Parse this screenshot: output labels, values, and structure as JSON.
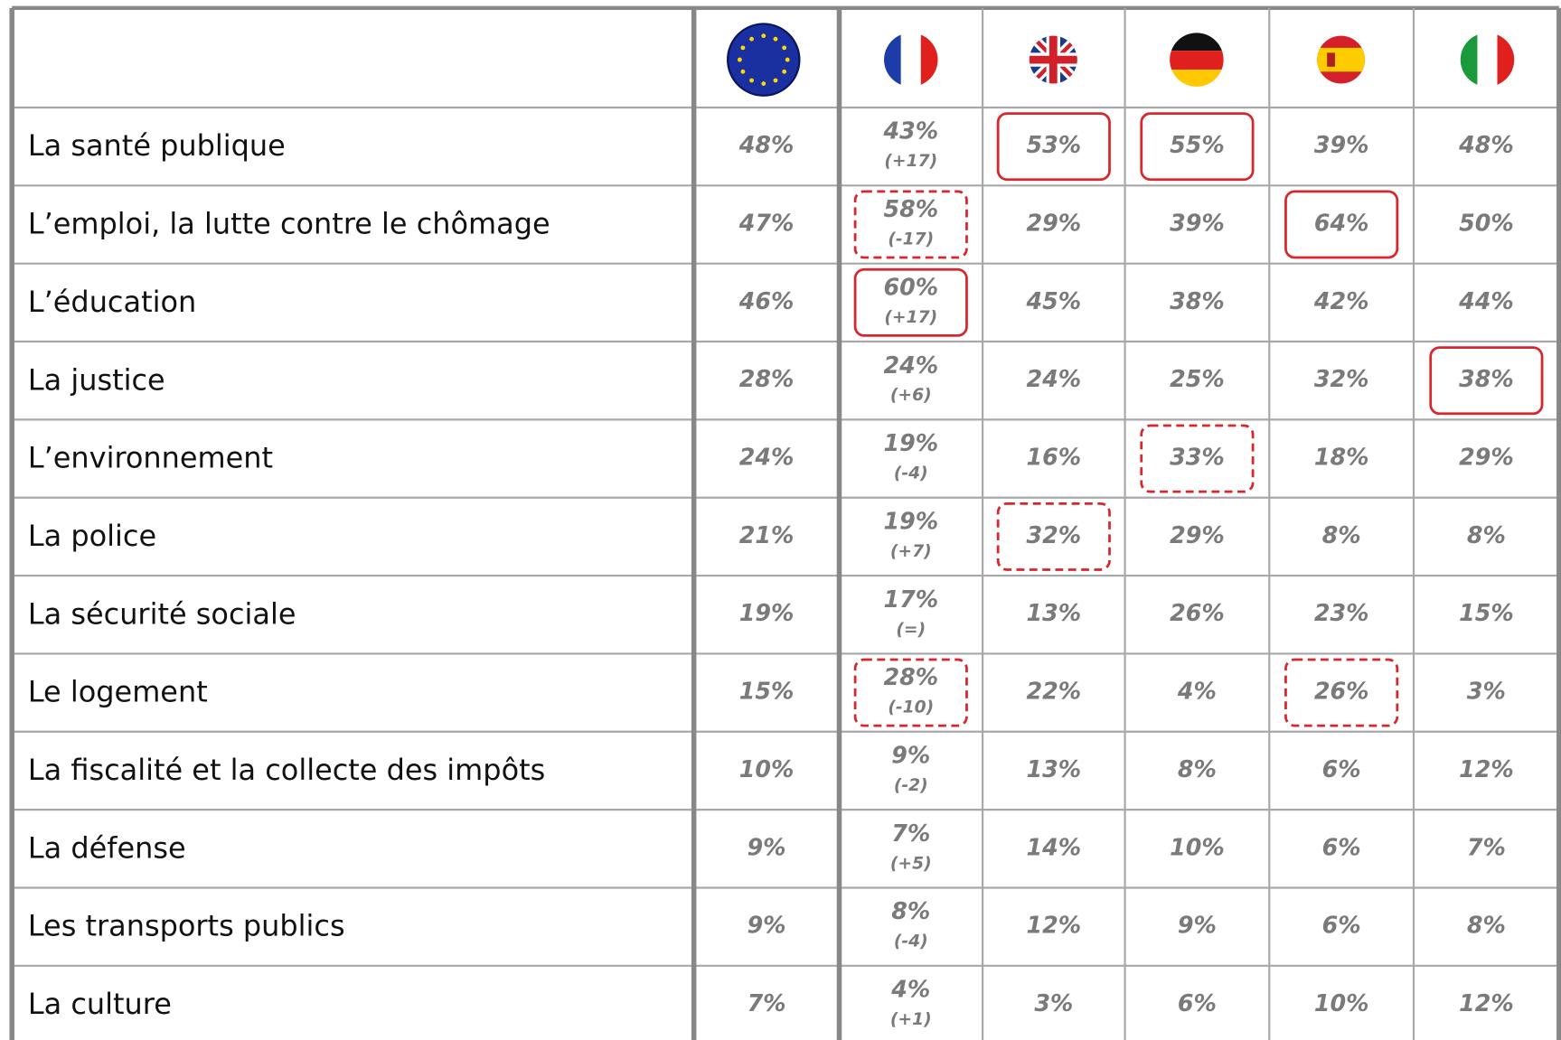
{
  "table": {
    "rows": [
      {
        "label": "La santé publique",
        "values": [
          "48%",
          "43%",
          "53%",
          "55%",
          "39%",
          "48%"
        ],
        "change": "(+17)"
      },
      {
        "label": "L’emploi, la lutte contre le chômage",
        "values": [
          "47%",
          "58%",
          "29%",
          "39%",
          "64%",
          "50%"
        ],
        "change": "(-17)"
      },
      {
        "label": "L’éducation",
        "values": [
          "46%",
          "60%",
          "45%",
          "38%",
          "42%",
          "44%"
        ],
        "change": "(+17)"
      },
      {
        "label": "La justice",
        "values": [
          "28%",
          "24%",
          "24%",
          "25%",
          "32%",
          "38%"
        ],
        "change": "(+6)"
      },
      {
        "label": "L’environnement",
        "values": [
          "24%",
          "19%",
          "16%",
          "33%",
          "18%",
          "29%"
        ],
        "change": "(-4)"
      },
      {
        "label": "La police",
        "values": [
          "21%",
          "19%",
          "32%",
          "29%",
          "8%",
          "8%"
        ],
        "change": "(+7)"
      },
      {
        "label": "La sécurité sociale",
        "values": [
          "19%",
          "17%",
          "13%",
          "26%",
          "23%",
          "15%"
        ],
        "change": "(=)"
      },
      {
        "label": "Le logement",
        "values": [
          "15%",
          "28%",
          "22%",
          "4%",
          "26%",
          "3%"
        ],
        "change": "(-10)"
      },
      {
        "label": "La fiscalité et la collecte des impôts",
        "values": [
          "10%",
          "9%",
          "13%",
          "8%",
          "6%",
          "12%"
        ],
        "change": "(-2)"
      },
      {
        "label": "La défense",
        "values": [
          "9%",
          "7%",
          "14%",
          "10%",
          "6%",
          "7%"
        ],
        "change": "(+5)"
      },
      {
        "label": "Les transports publics",
        "values": [
          "9%",
          "8%",
          "12%",
          "9%",
          "6%",
          "8%"
        ],
        "change": "(-4)"
      },
      {
        "label": "La culture",
        "values": [
          "7%",
          "4%",
          "3%",
          "6%",
          "10%",
          "12%"
        ],
        "change": "(+1)"
      }
    ]
  }
}
